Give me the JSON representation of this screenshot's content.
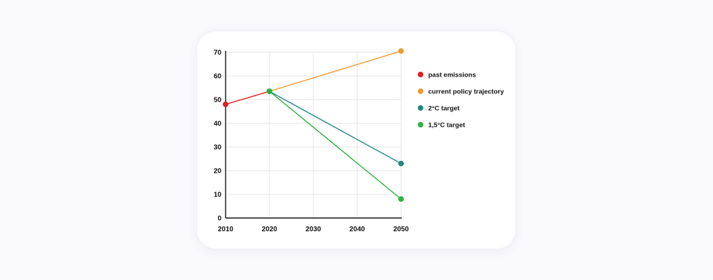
{
  "chart_data": {
    "type": "line",
    "title": "",
    "xlabel": "",
    "ylabel": "",
    "x_ticks": [
      2010,
      2020,
      2030,
      2040,
      2050
    ],
    "y_ticks": [
      0,
      10,
      20,
      30,
      40,
      50,
      60,
      70
    ],
    "xlim": [
      2010,
      2050
    ],
    "ylim": [
      0,
      70
    ],
    "grid": true,
    "legend_position": "right",
    "series": [
      {
        "name": "past emissions",
        "color": "#e0201c",
        "points": [
          [
            2010,
            48
          ],
          [
            2020,
            53.5
          ]
        ]
      },
      {
        "name": "current policy trajectory",
        "color": "#f29a2e",
        "points": [
          [
            2020,
            53.5
          ],
          [
            2050,
            70.5
          ]
        ]
      },
      {
        "name": "2°C target",
        "color": "#1f8a84",
        "points": [
          [
            2020,
            53.5
          ],
          [
            2050,
            23
          ]
        ]
      },
      {
        "name": "1,5°C target",
        "color": "#2ab53e",
        "points": [
          [
            2020,
            53.5
          ],
          [
            2050,
            8
          ]
        ]
      }
    ]
  }
}
